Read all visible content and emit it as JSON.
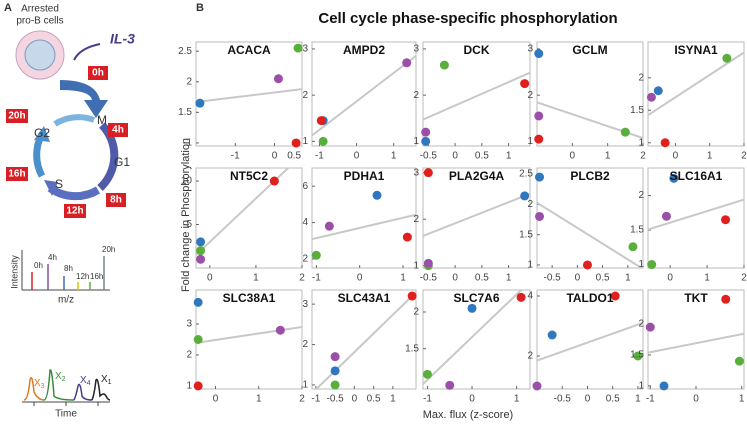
{
  "panel_a": {
    "label": "A",
    "cell_text": [
      "Arrested",
      "pro-B cells"
    ],
    "stimulus": "IL-3",
    "release_time": "0h",
    "phases": [
      "M",
      "G1",
      "S",
      "G2"
    ],
    "times": [
      "4h",
      "8h",
      "12h",
      "16h",
      "20h"
    ],
    "spectrum_labels": [
      "0h",
      "4h",
      "8h",
      "12h",
      "16h",
      "20h"
    ],
    "spectrum_ylabel": "Intensity",
    "spectrum_xlabel": "m/z",
    "peaks": [
      {
        "base": "X",
        "sub": "3"
      },
      {
        "base": "X",
        "sub": "2"
      },
      {
        "base": "X",
        "sub": "4"
      },
      {
        "base": "X",
        "sub": "1"
      }
    ],
    "chromatogram_xlabel": "Time"
  },
  "panel_b": {
    "label": "B",
    "title": "Cell cycle phase-specific phosphorylation",
    "ylabel": "Fold change in Phosphorylation",
    "xlabel": "Max. flux (z-score)"
  },
  "chart_data": [
    {
      "type": "scatter",
      "title": "ACACA",
      "x": [
        -1.9,
        0.6,
        0.1,
        0.55
      ],
      "values": [
        1.65,
        2.55,
        2.05,
        1.0
      ],
      "colors": [
        "#2f78c0",
        "#5aaf3c",
        "#9c4fa8",
        "#e0201c"
      ],
      "xlim": [
        -2,
        0.7
      ],
      "xticks": [
        -1,
        0,
        0.5
      ],
      "ylim": [
        0.95,
        2.65
      ],
      "yticks": [
        1,
        1.5,
        2,
        2.5
      ]
    },
    {
      "type": "scatter",
      "title": "AMPD2",
      "x": [
        -0.9,
        -0.9,
        1.35,
        -0.95
      ],
      "values": [
        1.45,
        1.0,
        2.7,
        1.45
      ],
      "colors": [
        "#2f78c0",
        "#5aaf3c",
        "#9c4fa8",
        "#e0201c"
      ],
      "xlim": [
        -1.2,
        1.6
      ],
      "xticks": [
        -1,
        0,
        1
      ],
      "ylim": [
        0.9,
        3.15
      ],
      "yticks": [
        1,
        2,
        3
      ]
    },
    {
      "type": "scatter",
      "title": "DCK",
      "x": [
        -0.55,
        -0.2,
        -0.55,
        1.3
      ],
      "values": [
        1.0,
        2.65,
        1.2,
        2.25
      ],
      "colors": [
        "#2f78c0",
        "#5aaf3c",
        "#9c4fa8",
        "#e0201c"
      ],
      "xlim": [
        -0.6,
        1.4
      ],
      "xticks": [
        -0.5,
        0,
        0.5,
        1
      ],
      "ylim": [
        0.9,
        3.15
      ],
      "yticks": [
        1,
        2,
        3
      ]
    },
    {
      "type": "scatter",
      "title": "GCLM",
      "x": [
        -0.95,
        1.5,
        -0.95,
        -0.95
      ],
      "values": [
        2.9,
        1.2,
        1.55,
        1.05
      ],
      "colors": [
        "#2f78c0",
        "#5aaf3c",
        "#9c4fa8",
        "#e0201c"
      ],
      "xlim": [
        -1,
        2
      ],
      "xticks": [
        0,
        1,
        2
      ],
      "ylim": [
        0.9,
        3.15
      ],
      "yticks": [
        1,
        2,
        3
      ]
    },
    {
      "type": "scatter",
      "title": "ISYNA1",
      "x": [
        -0.5,
        1.5,
        -0.7,
        -0.3
      ],
      "values": [
        1.8,
        2.3,
        1.7,
        1.0
      ],
      "colors": [
        "#2f78c0",
        "#5aaf3c",
        "#9c4fa8",
        "#e0201c"
      ],
      "xlim": [
        -0.8,
        2
      ],
      "xticks": [
        0,
        1,
        2
      ],
      "ylim": [
        0.95,
        2.55
      ],
      "yticks": [
        1,
        1.5,
        2
      ]
    },
    {
      "type": "scatter",
      "title": "NT5C2",
      "x": [
        -0.2,
        -0.2,
        -0.2,
        1.4
      ],
      "values": [
        3,
        2,
        1,
        10
      ],
      "colors": [
        "#2f78c0",
        "#5aaf3c",
        "#9c4fa8",
        "#e0201c"
      ],
      "xlim": [
        -0.3,
        2
      ],
      "xticks": [
        0,
        1,
        2
      ],
      "ylim": [
        0,
        11.5
      ],
      "yticks": [
        5,
        10
      ]
    },
    {
      "type": "scatter",
      "title": "PDHA1",
      "x": [
        0.4,
        -1,
        -0.7,
        1.1
      ],
      "values": [
        5.5,
        2.2,
        3.8,
        3.2
      ],
      "colors": [
        "#2f78c0",
        "#5aaf3c",
        "#9c4fa8",
        "#e0201c"
      ],
      "xlim": [
        -1.1,
        1.3
      ],
      "xticks": [
        -1,
        0,
        1
      ],
      "ylim": [
        1.5,
        7
      ],
      "yticks": [
        2,
        4,
        6
      ]
    },
    {
      "type": "scatter",
      "title": "PLA2G4A",
      "x": [
        1.3,
        -0.5,
        -0.5,
        -0.5
      ],
      "values": [
        2.5,
        1.0,
        1.05,
        3.0
      ],
      "colors": [
        "#2f78c0",
        "#5aaf3c",
        "#9c4fa8",
        "#e0201c"
      ],
      "xlim": [
        -0.6,
        1.4
      ],
      "xticks": [
        -0.5,
        0,
        0.5,
        1
      ],
      "ylim": [
        0.95,
        3.1
      ],
      "yticks": [
        1,
        2,
        3
      ]
    },
    {
      "type": "scatter",
      "title": "PLCB2",
      "x": [
        -0.75,
        1.1,
        -0.75,
        0.2
      ],
      "values": [
        2.45,
        1.3,
        1.8,
        1.0
      ],
      "colors": [
        "#2f78c0",
        "#5aaf3c",
        "#9c4fa8",
        "#e0201c"
      ],
      "xlim": [
        -0.8,
        1.3
      ],
      "xticks": [
        -0.5,
        0,
        0.5,
        1
      ],
      "ylim": [
        0.95,
        2.6
      ],
      "yticks": [
        1,
        1.5,
        2,
        2.5
      ]
    },
    {
      "type": "scatter",
      "title": "SLC16A1",
      "x": [
        0.1,
        -0.5,
        -0.1,
        1.5
      ],
      "values": [
        2.25,
        1.0,
        1.7,
        1.65
      ],
      "colors": [
        "#2f78c0",
        "#5aaf3c",
        "#9c4fa8",
        "#e0201c"
      ],
      "xlim": [
        -0.6,
        2
      ],
      "xticks": [
        0,
        1,
        2
      ],
      "ylim": [
        0.95,
        2.4
      ],
      "yticks": [
        1,
        1.5,
        2
      ]
    },
    {
      "type": "scatter",
      "title": "SLC38A1",
      "x": [
        -0.4,
        -0.4,
        1.5,
        -0.4
      ],
      "values": [
        3.7,
        2.5,
        2.8,
        1.0
      ],
      "colors": [
        "#2f78c0",
        "#5aaf3c",
        "#9c4fa8",
        "#e0201c"
      ],
      "xlim": [
        -0.45,
        2
      ],
      "xticks": [
        0,
        1,
        2
      ],
      "ylim": [
        0.9,
        4.1
      ],
      "yticks": [
        1,
        2,
        3
      ]
    },
    {
      "type": "scatter",
      "title": "SLC43A1",
      "x": [
        -0.5,
        -0.5,
        -0.5,
        1.5
      ],
      "values": [
        1.35,
        1.0,
        1.7,
        3.2
      ],
      "colors": [
        "#2f78c0",
        "#5aaf3c",
        "#9c4fa8",
        "#e0201c"
      ],
      "xlim": [
        -1.1,
        1.6
      ],
      "xticks": [
        -1,
        -0.5,
        0,
        0.5,
        1
      ],
      "ylim": [
        0.9,
        3.35
      ],
      "yticks": [
        1,
        2,
        3
      ]
    },
    {
      "type": "scatter",
      "title": "SLC7A6",
      "x": [
        0,
        -1,
        -0.5,
        1.1
      ],
      "values": [
        2.05,
        1.15,
        1.0,
        2.2
      ],
      "colors": [
        "#2f78c0",
        "#5aaf3c",
        "#9c4fa8",
        "#e0201c"
      ],
      "xlim": [
        -1.1,
        1.3
      ],
      "xticks": [
        -1,
        0,
        1
      ],
      "ylim": [
        0.95,
        2.3
      ],
      "yticks": [
        1.5,
        2
      ]
    },
    {
      "type": "scatter",
      "title": "TALDO1",
      "x": [
        -0.7,
        1,
        -1,
        0.55
      ],
      "values": [
        2.7,
        2.0,
        1.0,
        4.0
      ],
      "colors": [
        "#2f78c0",
        "#5aaf3c",
        "#9c4fa8",
        "#e0201c"
      ],
      "xlim": [
        -1,
        1.1
      ],
      "xticks": [
        -0.5,
        0,
        0.5,
        1
      ],
      "ylim": [
        0.9,
        4.2
      ],
      "yticks": [
        2,
        4
      ]
    },
    {
      "type": "scatter",
      "title": "TKT",
      "x": [
        -0.7,
        0.95,
        -1,
        0.65
      ],
      "values": [
        1.0,
        1.4,
        1.95,
        2.4
      ],
      "colors": [
        "#2f78c0",
        "#5aaf3c",
        "#9c4fa8",
        "#e0201c"
      ],
      "xlim": [
        -1.05,
        1.05
      ],
      "xticks": [
        -1,
        0,
        1
      ],
      "ylim": [
        0.95,
        2.55
      ],
      "yticks": [
        1,
        1.5,
        2
      ]
    }
  ]
}
